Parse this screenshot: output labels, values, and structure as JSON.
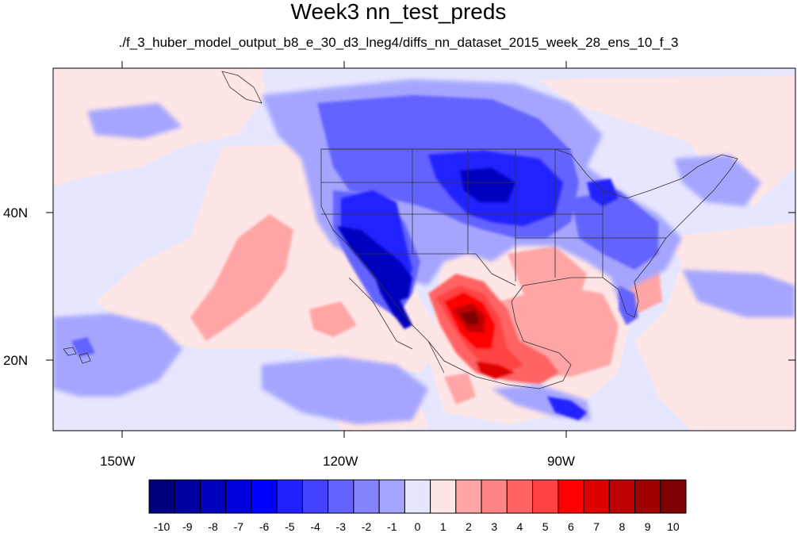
{
  "title": "Week3 nn_test_preds",
  "subtitle": "./f_3_huber_model_output_b8_e_30_d3_lneg4/diffs_nn_dataset_2015_week_28_ens_10_f_3",
  "map": {
    "projection": "cylindrical-equidistant",
    "lon_range": [
      -160,
      -60
    ],
    "lat_range": [
      10,
      60
    ],
    "lon_ticks": [
      "150W",
      "120W",
      "90W"
    ],
    "lat_ticks": [
      "40N",
      "20N"
    ],
    "field": "predicted difference"
  },
  "colorbar": {
    "labels": [
      "-10",
      "-9",
      "-8",
      "-7",
      "-6",
      "-5",
      "-4",
      "-3",
      "-2",
      "-1",
      "0",
      "1",
      "2",
      "3",
      "4",
      "5",
      "6",
      "7",
      "8",
      "9",
      "10"
    ],
    "colors": [
      "#00007f",
      "#00009f",
      "#0000bf",
      "#0000df",
      "#0000ff",
      "#2121ff",
      "#4242ff",
      "#6363ff",
      "#8484ff",
      "#a5a5ff",
      "#e6e6ff",
      "#ffe6e6",
      "#ffa5a5",
      "#ff8484",
      "#ff6363",
      "#ff4242",
      "#ff0000",
      "#df0000",
      "#bf0000",
      "#9f0000",
      "#7f0000"
    ]
  }
}
